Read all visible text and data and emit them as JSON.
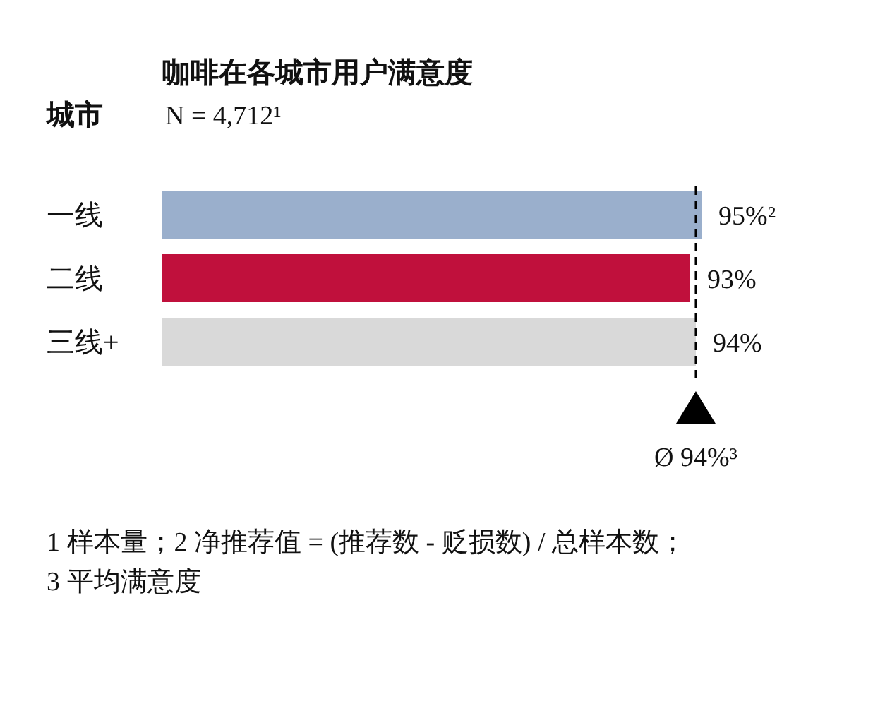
{
  "chart_data": {
    "type": "bar",
    "orientation": "horizontal",
    "title": "咖啡在各城市用户满意度",
    "ylabel": "城市",
    "categories": [
      "一线",
      "二线",
      "三线+"
    ],
    "values": [
      95,
      93,
      94
    ],
    "colors": [
      "#9aafcc",
      "#c0103c",
      "#d9d9d9"
    ],
    "value_labels": [
      "95%²",
      "93%",
      "94%"
    ],
    "ref_lines": [
      {
        "axis": "x",
        "value": 94,
        "label": "Ø 94%³",
        "line_style": "dashed",
        "color": "#000000"
      }
    ],
    "annotations": [
      "N = 4,712¹",
      "1 样本量；2 净推荐值 = (推荐数 - 贬损数) / 总样本数；",
      "3 平均满意度"
    ]
  }
}
